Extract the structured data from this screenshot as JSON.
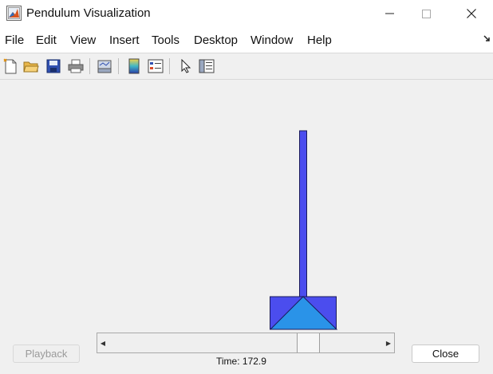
{
  "window": {
    "title": "Pendulum Visualization",
    "minimize_icon": "minimize-icon",
    "maximize_icon": "maximize-icon",
    "close_icon": "close-x-icon"
  },
  "menu": {
    "items": [
      "File",
      "Edit",
      "View",
      "Insert",
      "Tools",
      "Desktop",
      "Window",
      "Help"
    ]
  },
  "toolbar": {
    "icons": [
      "new-figure-icon",
      "open-file-icon",
      "save-icon",
      "print-icon",
      "link-plot-icon",
      "insert-colorbar-icon",
      "insert-legend-icon",
      "edit-plot-arrow-icon",
      "property-inspector-icon"
    ]
  },
  "scene": {
    "pendulum_color": "#4b4dee",
    "pendulum_border": "#1a1a5a",
    "cart_color": "#4b4dee",
    "pivot_color": "#2a93e8"
  },
  "controls": {
    "playback_label": "Playback",
    "playback_enabled": false,
    "close_label": "Close",
    "time_label": "Time:  172.9",
    "slider_position": 0.75
  }
}
